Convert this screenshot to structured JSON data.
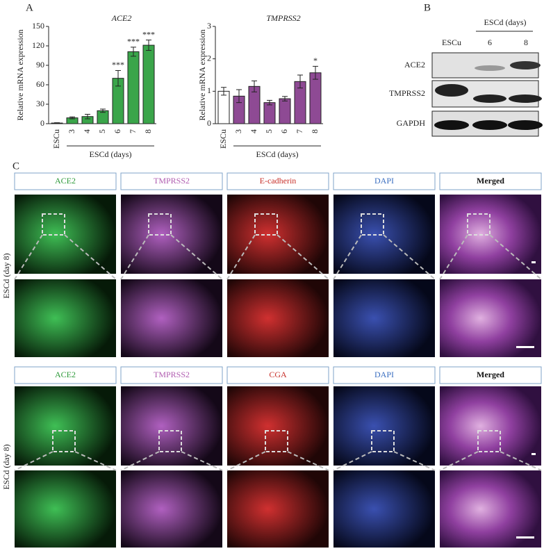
{
  "panel_labels": [
    "A",
    "B",
    "C"
  ],
  "chart_data": [
    {
      "type": "bar",
      "title": "ACE2",
      "ylabel": "Relative mRNA expression",
      "group_label": "ESCd (days)",
      "categories": [
        "ESCu",
        "3",
        "4",
        "5",
        "6",
        "7",
        "8"
      ],
      "values": [
        1,
        9,
        11,
        20,
        70,
        111,
        121
      ],
      "errors": [
        0.5,
        1.5,
        3.5,
        2.5,
        12,
        7,
        8
      ],
      "annotations": [
        null,
        null,
        null,
        null,
        "***",
        "***",
        "***"
      ],
      "colors": [
        "#ffffff",
        "#3aa54a",
        "#3aa54a",
        "#3aa54a",
        "#3aa54a",
        "#3aa54a",
        "#3aa54a"
      ],
      "ylim": [
        0,
        150
      ],
      "yticks": [
        0,
        30,
        60,
        90,
        120,
        150
      ]
    },
    {
      "type": "bar",
      "title": "TMPRSS2",
      "ylabel": "Relative mRNA expression",
      "group_label": "ESCd (days)",
      "categories": [
        "ESCu",
        "3",
        "4",
        "5",
        "6",
        "7",
        "8"
      ],
      "values": [
        1,
        0.85,
        1.15,
        0.65,
        0.77,
        1.3,
        1.57
      ],
      "errors": [
        0.12,
        0.2,
        0.17,
        0.07,
        0.07,
        0.2,
        0.2
      ],
      "annotations": [
        null,
        null,
        null,
        null,
        null,
        null,
        "*"
      ],
      "colors": [
        "#ffffff",
        "#8e4a94",
        "#8e4a94",
        "#8e4a94",
        "#8e4a94",
        "#8e4a94",
        "#8e4a94"
      ],
      "ylim": [
        0,
        3
      ],
      "yticks": [
        0,
        1,
        2,
        3
      ]
    }
  ],
  "blot": {
    "header": "ESCd (days)",
    "lanes": [
      "ESCu",
      "6",
      "8"
    ],
    "rows": [
      "ACE2",
      "TMPRSS2",
      "GAPDH"
    ]
  },
  "imaging": {
    "row_label": "ESCd (day 8)",
    "sets": [
      {
        "channels": [
          "ACE2",
          "TMPRSS2",
          "E-cadherin",
          "DAPI",
          "Merged"
        ]
      },
      {
        "channels": [
          "ACE2",
          "TMPRSS2",
          "CGA",
          "DAPI",
          "Merged"
        ]
      }
    ]
  }
}
